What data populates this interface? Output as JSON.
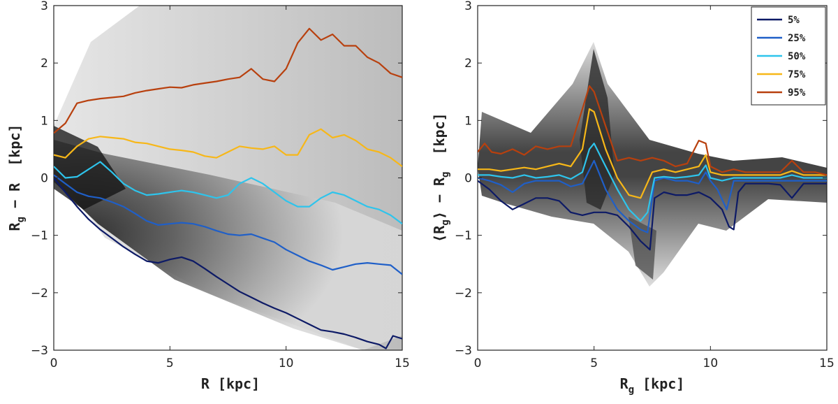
{
  "chart_data": [
    {
      "type": "line",
      "panel": "left",
      "xlabel_main": "R",
      "xlabel_unit": "[kpc]",
      "ylabel_parts": [
        "R",
        "g",
        " − R  [kpc]"
      ],
      "xlim": [
        0,
        15
      ],
      "ylim": [
        -3,
        3
      ],
      "xticks": [
        "0",
        "5",
        "10",
        "15"
      ],
      "yticks": [
        "−3",
        "−2",
        "−1",
        "0",
        "1",
        "2",
        "3"
      ],
      "background": "2D histogram (grayscale density)",
      "series": [
        {
          "name": "5%",
          "color": "#0d1a66",
          "x": [
            0,
            0.5,
            1,
            1.5,
            2,
            2.5,
            3,
            3.5,
            4,
            4.5,
            5,
            5.5,
            6,
            6.5,
            7,
            7.5,
            8,
            8.5,
            9,
            9.5,
            10,
            10.5,
            11,
            11.5,
            12,
            12.5,
            13,
            13.5,
            14,
            14.3,
            14.6,
            15
          ],
          "y": [
            0.0,
            -0.25,
            -0.5,
            -0.72,
            -0.9,
            -1.05,
            -1.2,
            -1.33,
            -1.45,
            -1.48,
            -1.42,
            -1.38,
            -1.45,
            -1.58,
            -1.72,
            -1.85,
            -1.98,
            -2.08,
            -2.18,
            -2.27,
            -2.35,
            -2.45,
            -2.55,
            -2.65,
            -2.68,
            -2.72,
            -2.78,
            -2.85,
            -2.9,
            -2.97,
            -2.75,
            -2.8
          ]
        },
        {
          "name": "25%",
          "color": "#1f5fc8",
          "x": [
            0,
            0.5,
            1,
            1.5,
            2,
            2.5,
            3,
            3.5,
            4,
            4.5,
            5,
            5.5,
            6,
            6.5,
            7,
            7.5,
            8,
            8.5,
            9,
            9.5,
            10,
            10.5,
            11,
            11.5,
            12,
            12.5,
            13,
            13.5,
            14,
            14.5,
            15
          ],
          "y": [
            0.05,
            -0.1,
            -0.25,
            -0.32,
            -0.35,
            -0.42,
            -0.5,
            -0.62,
            -0.75,
            -0.82,
            -0.8,
            -0.78,
            -0.8,
            -0.85,
            -0.92,
            -0.98,
            -1.0,
            -0.98,
            -1.05,
            -1.12,
            -1.25,
            -1.35,
            -1.45,
            -1.52,
            -1.6,
            -1.55,
            -1.5,
            -1.48,
            -1.5,
            -1.52,
            -1.68
          ]
        },
        {
          "name": "50%",
          "color": "#2ec4ec",
          "x": [
            0,
            0.5,
            1,
            1.5,
            2,
            2.5,
            3,
            3.5,
            4,
            4.5,
            5,
            5.5,
            6,
            6.5,
            7,
            7.5,
            8,
            8.5,
            9,
            9.5,
            10,
            10.5,
            11,
            11.5,
            12,
            12.5,
            13,
            13.5,
            14,
            14.5,
            15
          ],
          "y": [
            0.2,
            0.0,
            0.02,
            0.15,
            0.28,
            0.1,
            -0.1,
            -0.22,
            -0.3,
            -0.28,
            -0.25,
            -0.22,
            -0.25,
            -0.3,
            -0.35,
            -0.3,
            -0.1,
            0.0,
            -0.1,
            -0.25,
            -0.4,
            -0.5,
            -0.5,
            -0.35,
            -0.25,
            -0.3,
            -0.4,
            -0.5,
            -0.55,
            -0.65,
            -0.8
          ]
        },
        {
          "name": "75%",
          "color": "#f7b718",
          "x": [
            0,
            0.5,
            1,
            1.5,
            2,
            2.5,
            3,
            3.5,
            4,
            4.5,
            5,
            5.5,
            6,
            6.5,
            7,
            7.5,
            8,
            8.5,
            9,
            9.5,
            10,
            10.5,
            11,
            11.5,
            12,
            12.5,
            13,
            13.5,
            14,
            14.5,
            15
          ],
          "y": [
            0.4,
            0.35,
            0.55,
            0.68,
            0.72,
            0.7,
            0.68,
            0.62,
            0.6,
            0.55,
            0.5,
            0.48,
            0.45,
            0.38,
            0.35,
            0.45,
            0.55,
            0.52,
            0.5,
            0.55,
            0.4,
            0.4,
            0.75,
            0.85,
            0.7,
            0.75,
            0.65,
            0.5,
            0.45,
            0.35,
            0.2
          ]
        },
        {
          "name": "95%",
          "color": "#b8400e",
          "x": [
            0,
            0.5,
            1,
            1.5,
            2,
            2.5,
            3,
            3.5,
            4,
            4.5,
            5,
            5.5,
            6,
            6.5,
            7,
            7.5,
            8,
            8.5,
            9,
            9.5,
            10,
            10.5,
            10.8,
            11,
            11.5,
            12,
            12.5,
            13,
            13.5,
            14,
            14.5,
            15
          ],
          "y": [
            0.78,
            0.95,
            1.3,
            1.35,
            1.38,
            1.4,
            1.42,
            1.48,
            1.52,
            1.55,
            1.58,
            1.57,
            1.62,
            1.65,
            1.68,
            1.72,
            1.75,
            1.9,
            1.72,
            1.68,
            1.9,
            2.35,
            2.5,
            2.6,
            2.4,
            2.5,
            2.3,
            2.3,
            2.1,
            2.0,
            1.82,
            1.75
          ]
        }
      ]
    },
    {
      "type": "line",
      "panel": "right",
      "xlabel_main": "R",
      "xlabel_sub": "g",
      "xlabel_unit": "[kpc]",
      "ylabel_parts": [
        "⟨R",
        "g",
        "⟩ − R",
        "g",
        "  [kpc]"
      ],
      "xlim": [
        0,
        15
      ],
      "ylim": [
        -3,
        3
      ],
      "xticks": [
        "0",
        "5",
        "10",
        "15"
      ],
      "yticks": [
        "−3",
        "−2",
        "−1",
        "0",
        "1",
        "2",
        "3"
      ],
      "background": "2D histogram (grayscale density)",
      "legend": {
        "position": "top-right",
        "entries": [
          "5%",
          "25%",
          "50%",
          "75%",
          "95%"
        ]
      },
      "series": [
        {
          "name": "5%",
          "color": "#0d1a66",
          "x": [
            0,
            0.5,
            1,
            1.5,
            2,
            2.5,
            3,
            3.5,
            4,
            4.5,
            5,
            5.5,
            6,
            6.5,
            7,
            7.4,
            7.6,
            8,
            8.5,
            9,
            9.5,
            10,
            10.5,
            10.8,
            11,
            11.2,
            11.5,
            12,
            12.5,
            13,
            13.5,
            14,
            14.5,
            15
          ],
          "y": [
            -0.05,
            -0.2,
            -0.4,
            -0.55,
            -0.45,
            -0.35,
            -0.35,
            -0.4,
            -0.6,
            -0.65,
            -0.6,
            -0.6,
            -0.65,
            -0.85,
            -1.1,
            -1.25,
            -0.35,
            -0.25,
            -0.3,
            -0.3,
            -0.25,
            -0.35,
            -0.55,
            -0.85,
            -0.9,
            -0.25,
            -0.1,
            -0.1,
            -0.1,
            -0.12,
            -0.35,
            -0.1,
            -0.1,
            -0.1
          ]
        },
        {
          "name": "25%",
          "color": "#1f5fc8",
          "x": [
            0,
            0.5,
            1,
            1.5,
            2,
            2.5,
            3,
            3.5,
            4,
            4.5,
            5,
            5.5,
            6,
            6.5,
            7,
            7.3,
            7.6,
            8,
            8.5,
            9,
            9.5,
            9.8,
            10,
            10.3,
            10.7,
            11,
            11.5,
            12,
            12.5,
            13,
            13.5,
            14,
            14.5,
            15
          ],
          "y": [
            0.0,
            -0.05,
            -0.12,
            -0.25,
            -0.1,
            -0.05,
            -0.05,
            -0.05,
            -0.15,
            -0.1,
            0.3,
            -0.2,
            -0.55,
            -0.75,
            -0.9,
            -0.95,
            -0.05,
            0.0,
            -0.05,
            -0.05,
            -0.1,
            0.1,
            -0.05,
            -0.2,
            -0.55,
            -0.05,
            -0.05,
            -0.05,
            -0.05,
            -0.05,
            -0.05,
            -0.05,
            -0.05,
            -0.05
          ]
        },
        {
          "name": "50%",
          "color": "#2ec4ec",
          "x": [
            0,
            0.5,
            1,
            1.5,
            2,
            2.5,
            3,
            3.5,
            4,
            4.5,
            4.8,
            5,
            5.5,
            6,
            6.5,
            7,
            7.3,
            7.6,
            8,
            8.5,
            9,
            9.5,
            9.8,
            10,
            10.5,
            11,
            11.5,
            12,
            12.5,
            13,
            13.5,
            14,
            14.5,
            15
          ],
          "y": [
            0.05,
            0.05,
            0.02,
            0.0,
            0.05,
            0.0,
            0.02,
            0.05,
            -0.02,
            0.1,
            0.5,
            0.6,
            0.2,
            -0.2,
            -0.55,
            -0.75,
            -0.6,
            0.0,
            0.02,
            0.0,
            0.02,
            0.05,
            0.22,
            0.0,
            -0.05,
            0.0,
            0.0,
            0.0,
            0.0,
            0.0,
            0.05,
            0.0,
            0.0,
            0.0
          ]
        },
        {
          "name": "75%",
          "color": "#f7b718",
          "x": [
            0,
            0.5,
            1,
            1.5,
            2,
            2.5,
            3,
            3.5,
            4,
            4.5,
            4.8,
            5,
            5.5,
            6,
            6.5,
            7,
            7.5,
            8,
            8.5,
            9,
            9.5,
            9.8,
            10,
            10.5,
            11,
            11.5,
            12,
            12.5,
            13,
            13.5,
            14,
            14.5,
            15
          ],
          "y": [
            0.15,
            0.15,
            0.12,
            0.15,
            0.18,
            0.15,
            0.2,
            0.25,
            0.2,
            0.5,
            1.2,
            1.15,
            0.5,
            0.0,
            -0.3,
            -0.35,
            0.1,
            0.15,
            0.1,
            0.15,
            0.2,
            0.4,
            0.1,
            0.05,
            0.05,
            0.05,
            0.05,
            0.05,
            0.05,
            0.12,
            0.05,
            0.05,
            0.05
          ]
        },
        {
          "name": "95%",
          "color": "#b8400e",
          "x": [
            0,
            0.3,
            0.6,
            1,
            1.5,
            2,
            2.5,
            3,
            3.5,
            4,
            4.5,
            4.8,
            5,
            5.5,
            6,
            6.5,
            7,
            7.5,
            8,
            8.5,
            9,
            9.5,
            9.8,
            10,
            10.5,
            11,
            11.5,
            12,
            12.5,
            13,
            13.5,
            14,
            14.5,
            15
          ],
          "y": [
            0.45,
            0.6,
            0.45,
            0.42,
            0.5,
            0.4,
            0.55,
            0.5,
            0.55,
            0.55,
            1.2,
            1.6,
            1.5,
            0.9,
            0.3,
            0.35,
            0.3,
            0.35,
            0.3,
            0.2,
            0.25,
            0.65,
            0.6,
            0.2,
            0.1,
            0.15,
            0.1,
            0.1,
            0.1,
            0.1,
            0.3,
            0.1,
            0.1,
            0.05
          ]
        }
      ]
    }
  ]
}
